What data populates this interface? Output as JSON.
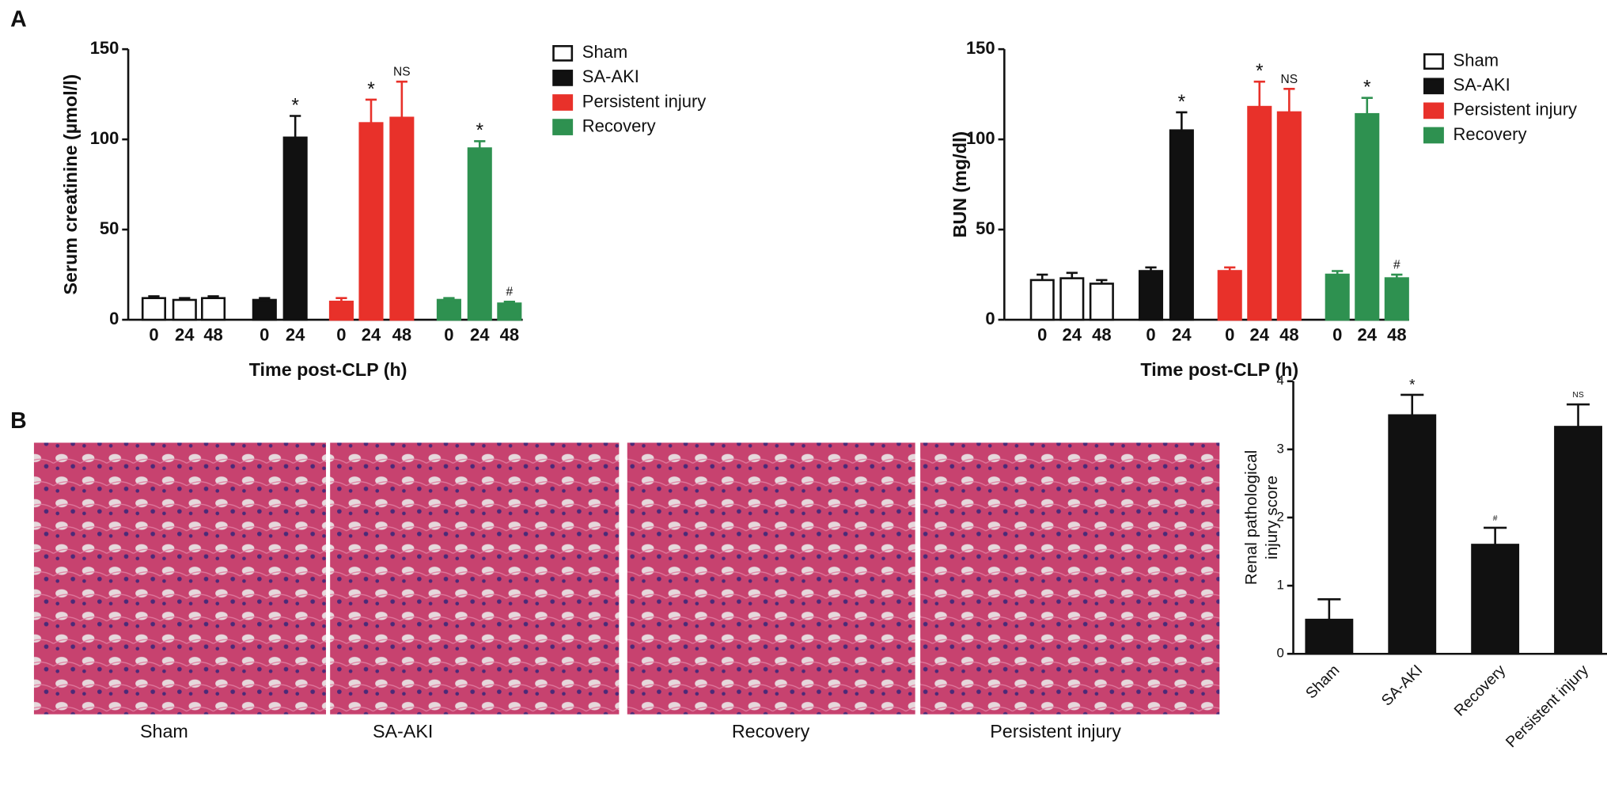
{
  "figure": {
    "panel_labels": [
      "A",
      "B"
    ],
    "image_captions": [
      "Sham",
      "SA-AKI",
      "Recovery",
      "Persistent injury"
    ]
  },
  "chart_data": [
    {
      "type": "bar",
      "y_label": "Serum creatinine (µmol/l)",
      "x_label": "Time post-CLP (h)",
      "ylim": [
        0,
        150
      ],
      "yticks": [
        0,
        50,
        100,
        150
      ],
      "series": [
        {
          "name": "Sham",
          "color": "#ffffff",
          "categories": [
            "0",
            "24",
            "48"
          ],
          "values": [
            12,
            11,
            12
          ],
          "errors": [
            1,
            1,
            1
          ],
          "annotations": [
            null,
            null,
            null
          ]
        },
        {
          "name": "SA-AKI",
          "color": "#111111",
          "categories": [
            "0",
            "24"
          ],
          "values": [
            11,
            101
          ],
          "errors": [
            1,
            12
          ],
          "annotations": [
            null,
            "*"
          ]
        },
        {
          "name": "Persistent injury",
          "color": "#e8312a",
          "categories": [
            "0",
            "24",
            "48"
          ],
          "values": [
            10,
            109,
            112
          ],
          "errors": [
            2,
            13,
            20
          ],
          "annotations": [
            null,
            "*",
            "NS"
          ]
        },
        {
          "name": "Recovery",
          "color": "#2e9150",
          "categories": [
            "0",
            "24",
            "48"
          ],
          "values": [
            11,
            95,
            9
          ],
          "errors": [
            1,
            4,
            1
          ],
          "annotations": [
            null,
            "*",
            "#"
          ]
        }
      ]
    },
    {
      "type": "bar",
      "y_label": "BUN (mg/dl)",
      "x_label": "Time post-CLP (h)",
      "ylim": [
        0,
        150
      ],
      "yticks": [
        0,
        50,
        100,
        150
      ],
      "series": [
        {
          "name": "Sham",
          "color": "#ffffff",
          "categories": [
            "0",
            "24",
            "48"
          ],
          "values": [
            22,
            23,
            20
          ],
          "errors": [
            3,
            3,
            2
          ],
          "annotations": [
            null,
            null,
            null
          ]
        },
        {
          "name": "SA-AKI",
          "color": "#111111",
          "categories": [
            "0",
            "24"
          ],
          "values": [
            27,
            105
          ],
          "errors": [
            2,
            10
          ],
          "annotations": [
            null,
            "*"
          ]
        },
        {
          "name": "Persistent injury",
          "color": "#e8312a",
          "categories": [
            "0",
            "24",
            "48"
          ],
          "values": [
            27,
            118,
            115
          ],
          "errors": [
            2,
            14,
            13
          ],
          "annotations": [
            null,
            "*",
            "NS"
          ]
        },
        {
          "name": "Recovery",
          "color": "#2e9150",
          "categories": [
            "0",
            "24",
            "48"
          ],
          "values": [
            25,
            114,
            23
          ],
          "errors": [
            2,
            9,
            2
          ],
          "annotations": [
            null,
            "*",
            "#"
          ]
        }
      ]
    },
    {
      "type": "bar",
      "y_label": [
        "Renal pathological",
        "injury score"
      ],
      "ylim": [
        0,
        4
      ],
      "yticks": [
        0,
        1,
        2,
        3,
        4
      ],
      "color": "#111111",
      "categories": [
        "Sham",
        "SA-AKI",
        "Recovery",
        "Persistent injury"
      ],
      "values": [
        0.5,
        3.5,
        1.6,
        3.33
      ],
      "errors": [
        0.3,
        0.3,
        0.25,
        0.33
      ],
      "annotations": [
        null,
        "*",
        "#",
        "NS"
      ]
    }
  ]
}
